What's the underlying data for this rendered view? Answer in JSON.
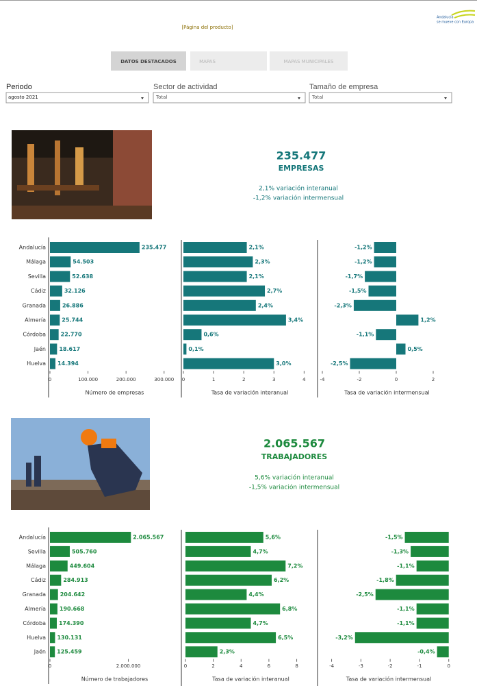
{
  "header": {
    "product_link": "[Página del producto]",
    "logo_line1": "Andalucía",
    "logo_line2": "se mueve con Europa"
  },
  "tabs": [
    "DATOS DESTACADOS",
    "MAPAS",
    "MAPAS MUNICIPALES"
  ],
  "filters": [
    {
      "label": "Periodo",
      "value": "agosto 2021"
    },
    {
      "label": "Sector de actividad",
      "value": "Total"
    },
    {
      "label": "Tamaño de empresa",
      "value": "Total"
    }
  ],
  "kpis": [
    {
      "value": "235.477",
      "label": "EMPRESAS",
      "interanual": "2,1% variación interanual",
      "intermensual": "-1,2% variación intermensual"
    },
    {
      "value": "2.065.567",
      "label": "TRABAJADORES",
      "interanual": "5,6% variación interanual",
      "intermensual": "-1,5% variación intermensual"
    }
  ],
  "chart_data": [
    {
      "type": "bar",
      "orientation": "horizontal",
      "color": "#16777a",
      "categories": [
        "Andalucía",
        "Málaga",
        "Sevilla",
        "Cádiz",
        "Granada",
        "Almería",
        "Córdoba",
        "Jaén",
        "Huelva"
      ],
      "values": [
        235477,
        54503,
        52638,
        32126,
        26886,
        25744,
        22770,
        18617,
        14394
      ],
      "value_labels": [
        "235.477",
        "54.503",
        "52.638",
        "32.126",
        "26.886",
        "25.744",
        "22.770",
        "18.617",
        "14.394"
      ],
      "xlim": [
        0,
        340000
      ],
      "xticks": [
        0,
        {
          "value": 100000,
          "label": "100.000"
        },
        {
          "value": 200000,
          "label": "200.000"
        },
        {
          "value": 300000,
          "label": "300.000"
        }
      ],
      "xlabel": "Número de empresas"
    },
    {
      "type": "bar",
      "orientation": "horizontal",
      "color": "#16777a",
      "values": [
        2.1,
        2.3,
        2.1,
        2.7,
        2.4,
        3.4,
        0.6,
        0.1,
        3.0
      ],
      "value_labels": [
        "2,1%",
        "2,3%",
        "2,1%",
        "2,7%",
        "2,4%",
        "3,4%",
        "0,6%",
        "0,1%",
        "3,0%"
      ],
      "xlim": [
        0,
        4.4
      ],
      "xticks": [
        0,
        1,
        2,
        3,
        4
      ],
      "xlabel": "Tasa de variación interanual"
    },
    {
      "type": "bar",
      "orientation": "horizontal",
      "color": "#16777a",
      "values": [
        -1.2,
        -1.2,
        -1.7,
        -1.5,
        -2.3,
        1.2,
        -1.1,
        0.5,
        -2.5
      ],
      "value_labels": [
        "-1,2%",
        "-1,2%",
        "-1,7%",
        "-1,5%",
        "-2,3%",
        "1,2%",
        "-1,1%",
        "0,5%",
        "-2,5%"
      ],
      "xlim": [
        -4,
        3
      ],
      "xticks": [
        -4,
        -2,
        0,
        2
      ],
      "xlabel": "Tasa de variación intermensual"
    },
    {
      "type": "bar",
      "orientation": "horizontal",
      "color": "#1d8a3e",
      "categories": [
        "Andalucía",
        "Sevilla",
        "Málaga",
        "Cádiz",
        "Granada",
        "Almería",
        "Córdoba",
        "Huelva",
        "Jaén"
      ],
      "values": [
        2065567,
        505760,
        449604,
        284913,
        204642,
        190668,
        174390,
        130131,
        125459
      ],
      "value_labels": [
        "2.065.567",
        "505.760",
        "449.604",
        "284.913",
        "204.642",
        "190.668",
        "174.390",
        "130.131",
        "125.459"
      ],
      "xlim": [
        0,
        3300000
      ],
      "xticks": [
        0,
        {
          "value": 2000000,
          "label": "2.000.000"
        }
      ],
      "xlabel": "Número de trabajadores"
    },
    {
      "type": "bar",
      "orientation": "horizontal",
      "color": "#1d8a3e",
      "values": [
        5.6,
        4.7,
        7.2,
        6.2,
        4.4,
        6.8,
        4.7,
        6.5,
        2.3
      ],
      "value_labels": [
        "5,6%",
        "4,7%",
        "7,2%",
        "6,2%",
        "4,4%",
        "6,8%",
        "4,7%",
        "6,5%",
        "2,3%"
      ],
      "xlim": [
        0,
        9.4
      ],
      "xticks": [
        0,
        2,
        4,
        6,
        8
      ],
      "xlabel": "Tasa de variación interanual"
    },
    {
      "type": "bar",
      "orientation": "horizontal",
      "color": "#1d8a3e",
      "values": [
        -1.5,
        -1.3,
        -1.1,
        -1.8,
        -2.5,
        -1.1,
        -1.1,
        -3.2,
        -0.4
      ],
      "value_labels": [
        "-1,5%",
        "-1,3%",
        "-1,1%",
        "-1,8%",
        "-2,5%",
        "-1,1%",
        "-1,1%",
        "-3,2%",
        "-0,4%"
      ],
      "xlim": [
        -4.2,
        0.1
      ],
      "xticks": [
        -4,
        -3,
        -2,
        -1,
        0
      ],
      "xlabel": "Tasa de variación intermensual"
    }
  ]
}
